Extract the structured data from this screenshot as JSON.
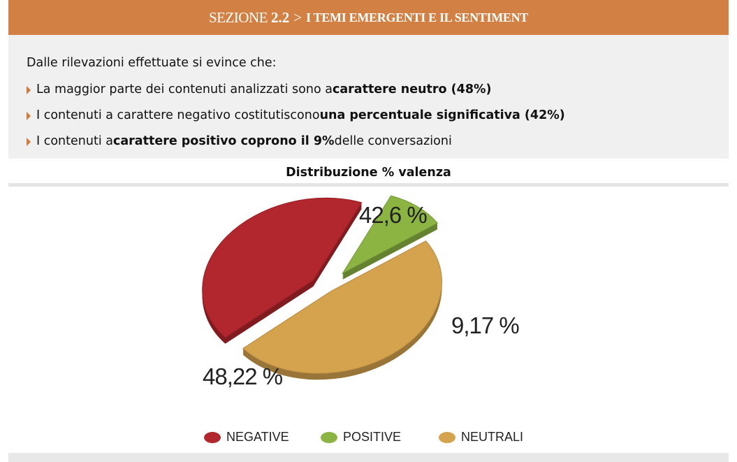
{
  "header": {
    "section_label": "SEZIONE",
    "section_number": "2.2",
    "separator": ">",
    "title": "I TEMI EMERGENTI E IL SENTIMENT"
  },
  "intro": {
    "lead": "Dalle rilevazioni effettuate si evince che:",
    "bullets": [
      {
        "pre": "La maggior parte dei contenuti analizzati sono a ",
        "bold": "carattere neutro (48%)",
        "post": ""
      },
      {
        "pre": "I contenuti a carattere negativo costitutiscono ",
        "bold": "una percentuale significativa (42%)",
        "post": ""
      },
      {
        "pre": "I contenuti a ",
        "bold": "carattere positivo coprono il 9%",
        "post": " delle conversazioni"
      }
    ]
  },
  "colors": {
    "header_bg": "#d28043",
    "negative": "#b2272e",
    "positive": "#8cb443",
    "neutral": "#d5a24e"
  },
  "chart_data": {
    "type": "pie",
    "title": "Distribuzione % valenza",
    "categories": [
      "NEGATIVE",
      "POSITIVE",
      "NEUTRALI"
    ],
    "values": [
      42.6,
      9.17,
      48.22
    ],
    "data_labels": [
      "42,6 %",
      "9,17 %",
      "48,22 %"
    ],
    "exploded": true,
    "three_d": true,
    "legend_position": "bottom"
  }
}
